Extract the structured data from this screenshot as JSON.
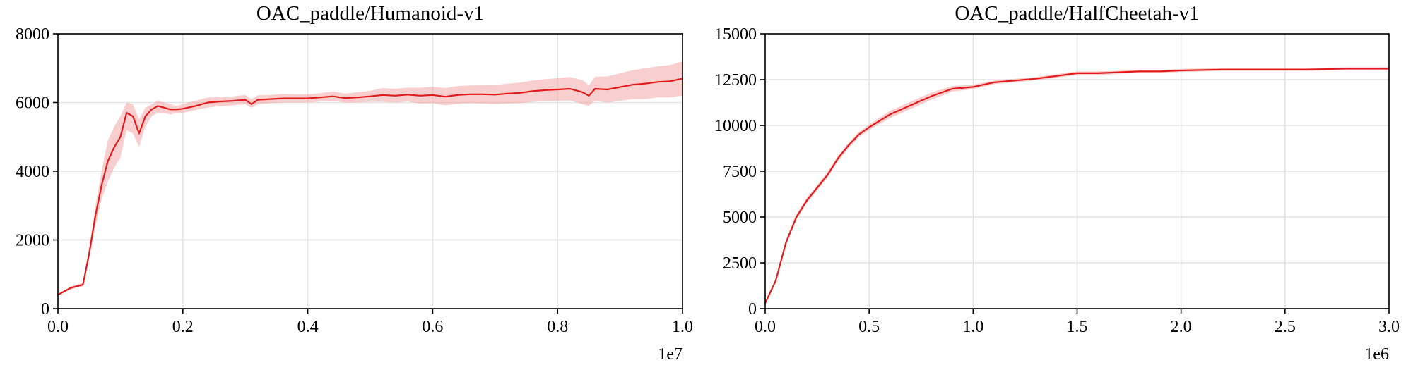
{
  "chart_data": [
    {
      "type": "line",
      "title": "OAC_paddle/Humanoid-v1",
      "xlabel": "",
      "ylabel": "",
      "x_exponent_label": "1e7",
      "xlim": [
        0.0,
        1.0
      ],
      "ylim": [
        0,
        8000
      ],
      "xticks": [
        "0.0",
        "0.2",
        "0.4",
        "0.6",
        "0.8",
        "1.0"
      ],
      "yticks": [
        "0",
        "2000",
        "4000",
        "6000",
        "8000"
      ],
      "grid": true,
      "colors": {
        "line": "#e31a1c",
        "band": "#f4a6a6"
      },
      "series": [
        {
          "x": [
            0.0,
            0.01,
            0.02,
            0.03,
            0.04,
            0.05,
            0.06,
            0.07,
            0.08,
            0.09,
            0.1,
            0.11,
            0.12,
            0.13,
            0.14,
            0.15,
            0.16,
            0.17,
            0.18,
            0.19,
            0.2,
            0.22,
            0.24,
            0.26,
            0.28,
            0.3,
            0.31,
            0.32,
            0.34,
            0.36,
            0.38,
            0.4,
            0.42,
            0.44,
            0.46,
            0.48,
            0.5,
            0.52,
            0.54,
            0.56,
            0.58,
            0.6,
            0.62,
            0.64,
            0.66,
            0.68,
            0.7,
            0.72,
            0.74,
            0.76,
            0.78,
            0.8,
            0.82,
            0.84,
            0.85,
            0.86,
            0.88,
            0.9,
            0.92,
            0.94,
            0.96,
            0.98,
            1.0
          ],
          "y": [
            400,
            500,
            600,
            650,
            700,
            1600,
            2700,
            3600,
            4300,
            4700,
            5000,
            5700,
            5600,
            5100,
            5600,
            5800,
            5900,
            5850,
            5800,
            5800,
            5820,
            5900,
            6000,
            6030,
            6050,
            6080,
            5950,
            6080,
            6100,
            6120,
            6120,
            6120,
            6150,
            6180,
            6130,
            6150,
            6180,
            6220,
            6200,
            6230,
            6200,
            6220,
            6170,
            6220,
            6240,
            6240,
            6230,
            6260,
            6280,
            6330,
            6360,
            6380,
            6400,
            6300,
            6200,
            6400,
            6380,
            6450,
            6520,
            6550,
            6600,
            6620,
            6700
          ],
          "lower": [
            380,
            470,
            560,
            610,
            640,
            1450,
            2400,
            3200,
            3700,
            4100,
            4400,
            5200,
            5100,
            4700,
            5300,
            5600,
            5700,
            5700,
            5650,
            5700,
            5700,
            5780,
            5850,
            5900,
            5920,
            5950,
            5850,
            5950,
            5980,
            6000,
            6000,
            6000,
            6030,
            6050,
            6000,
            6000,
            6020,
            6020,
            6000,
            6030,
            5970,
            5980,
            5920,
            5960,
            5980,
            5970,
            5950,
            5970,
            5980,
            6020,
            6040,
            6050,
            6060,
            5950,
            5900,
            6050,
            6000,
            6050,
            6100,
            6100,
            6150,
            6150,
            6200
          ],
          "upper": [
            420,
            540,
            640,
            700,
            760,
            1750,
            3000,
            4000,
            4900,
            5300,
            5600,
            6000,
            5950,
            5500,
            5850,
            5950,
            6050,
            6000,
            5950,
            5900,
            5950,
            6050,
            6150,
            6150,
            6180,
            6220,
            6100,
            6210,
            6220,
            6250,
            6240,
            6240,
            6270,
            6320,
            6260,
            6300,
            6340,
            6420,
            6400,
            6430,
            6430,
            6460,
            6420,
            6480,
            6500,
            6510,
            6510,
            6550,
            6580,
            6640,
            6680,
            6710,
            6740,
            6650,
            6500,
            6750,
            6760,
            6850,
            6940,
            7000,
            7050,
            7090,
            7200
          ]
        }
      ]
    },
    {
      "type": "line",
      "title": "OAC_paddle/HalfCheetah-v1",
      "xlabel": "",
      "ylabel": "",
      "x_exponent_label": "1e6",
      "xlim": [
        0.0,
        3.0
      ],
      "ylim": [
        0,
        15000
      ],
      "xticks": [
        "0.0",
        "0.5",
        "1.0",
        "1.5",
        "2.0",
        "2.5",
        "3.0"
      ],
      "yticks": [
        "0",
        "2500",
        "5000",
        "7500",
        "10000",
        "12500",
        "15000"
      ],
      "grid": true,
      "colors": {
        "line": "#e31a1c",
        "band": "#f4a6a6"
      },
      "series": [
        {
          "x": [
            0.0,
            0.05,
            0.1,
            0.15,
            0.2,
            0.25,
            0.3,
            0.35,
            0.4,
            0.45,
            0.5,
            0.6,
            0.7,
            0.8,
            0.9,
            1.0,
            1.1,
            1.2,
            1.3,
            1.4,
            1.5,
            1.6,
            1.7,
            1.8,
            1.9,
            2.0,
            2.2,
            2.4,
            2.6,
            2.8,
            3.0
          ],
          "y": [
            300,
            1500,
            3600,
            5000,
            5900,
            6600,
            7300,
            8200,
            8900,
            9500,
            9900,
            10600,
            11100,
            11600,
            12000,
            12100,
            12350,
            12450,
            12550,
            12700,
            12850,
            12850,
            12900,
            12950,
            12950,
            13000,
            13050,
            13050,
            13050,
            13100,
            13100
          ],
          "lower": [
            250,
            1400,
            3450,
            4850,
            5750,
            6450,
            7150,
            8050,
            8750,
            9350,
            9750,
            10400,
            10900,
            11400,
            11850,
            11980,
            12250,
            12350,
            12450,
            12600,
            12750,
            12750,
            12820,
            12870,
            12870,
            12920,
            12970,
            12970,
            12970,
            13020,
            13020
          ],
          "upper": [
            350,
            1600,
            3750,
            5150,
            6050,
            6750,
            7450,
            8350,
            9050,
            9650,
            10050,
            10800,
            11300,
            11800,
            12150,
            12220,
            12450,
            12550,
            12650,
            12800,
            12950,
            12950,
            12980,
            13030,
            13030,
            13080,
            13130,
            13130,
            13130,
            13180,
            13180
          ]
        }
      ]
    }
  ]
}
